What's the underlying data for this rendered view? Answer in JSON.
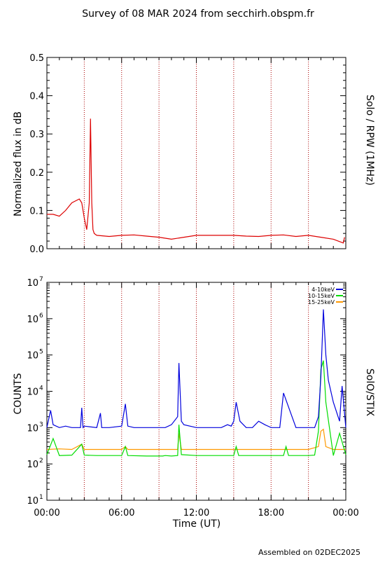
{
  "page": {
    "title": "Survey of 08 MAR 2024 from secchirh.obspm.fr",
    "footer": "Assembled on 02DEC2025"
  },
  "colors": {
    "rpw": "#dd0000",
    "stix_low": "#0000dd",
    "stix_mid": "#00dd00",
    "stix_high": "#ff9900",
    "guides": "#aa0000"
  },
  "chart_data": [
    {
      "type": "line",
      "ylabel": "Normalized flux in dB",
      "right_label": "Solo / RPW (1MHz)",
      "xlim": [
        0,
        24
      ],
      "ylim": [
        0,
        0.5
      ],
      "y_ticks": [
        "0.0",
        "0.1",
        "0.2",
        "0.3",
        "0.4",
        "0.5"
      ],
      "x_ticks": [],
      "grid": false,
      "series": [
        {
          "x": [
            0,
            0.5,
            1,
            1.5,
            2,
            2.6,
            2.8,
            3.0,
            3.2,
            3.4,
            3.5,
            3.6,
            3.7,
            3.8,
            4,
            5,
            6,
            7,
            8,
            9,
            10,
            11,
            12,
            13,
            14,
            15,
            16,
            17,
            18,
            19,
            20,
            21,
            22,
            23,
            23.8,
            23.9
          ],
          "y": [
            0.09,
            0.09,
            0.085,
            0.1,
            0.12,
            0.13,
            0.12,
            0.08,
            0.05,
            0.12,
            0.34,
            0.12,
            0.05,
            0.04,
            0.035,
            0.032,
            0.035,
            0.036,
            0.033,
            0.03,
            0.025,
            0.03,
            0.035,
            0.035,
            0.035,
            0.035,
            0.033,
            0.032,
            0.035,
            0.036,
            0.032,
            0.035,
            0.03,
            0.025,
            0.015,
            0.03
          ]
        }
      ]
    },
    {
      "type": "line",
      "ylabel": "COUNTS",
      "xlabel": "Time (UT)",
      "right_label": "SolO/STIX",
      "xlim": [
        0,
        24
      ],
      "ylim": [
        10,
        10000000
      ],
      "yscale": "log",
      "y_tick_exponents": [
        "1",
        "2",
        "3",
        "4",
        "5",
        "6",
        "7"
      ],
      "x_ticks": [
        "00:00",
        "06:00",
        "12:00",
        "18:00",
        "00:00"
      ],
      "grid": false,
      "legend_position": "top-right",
      "series": [
        {
          "name": "4-10keV",
          "x": [
            0,
            0.3,
            0.5,
            1,
            1.5,
            2,
            2.7,
            2.8,
            2.9,
            3,
            4,
            4.3,
            4.4,
            5,
            6,
            6.3,
            6.5,
            7,
            8,
            9,
            9.5,
            10,
            10.5,
            10.6,
            10.8,
            11,
            12,
            13,
            14,
            14.5,
            14.8,
            15,
            15.2,
            15.5,
            16,
            16.5,
            17,
            17.5,
            18,
            18.7,
            19,
            20,
            21,
            21.5,
            21.8,
            22,
            22.2,
            22.4,
            22.6,
            23,
            23.5,
            23.7,
            24
          ],
          "y": [
            1000,
            3000,
            1200,
            1000,
            1100,
            1000,
            1000,
            3500,
            1000,
            1100,
            1000,
            2500,
            1000,
            1000,
            1100,
            4500,
            1100,
            1000,
            1000,
            1000,
            1000,
            1200,
            2000,
            60000,
            1500,
            1200,
            1000,
            1000,
            1000,
            1200,
            1100,
            1500,
            5000,
            1500,
            1000,
            1000,
            1500,
            1200,
            1000,
            1000,
            9000,
            1000,
            1000,
            1000,
            2000,
            25000,
            1800000,
            100000,
            20000,
            5000,
            1500,
            14000,
            1000
          ]
        },
        {
          "name": "10-15keV",
          "x": [
            0,
            0.5,
            1,
            2,
            2.8,
            3,
            4,
            6,
            6.3,
            6.5,
            8,
            9.3,
            9.5,
            10,
            10.5,
            10.6,
            10.8,
            12,
            14,
            15,
            15.2,
            15.4,
            16,
            18,
            19,
            19.2,
            19.4,
            20,
            21,
            21.5,
            21.8,
            22,
            22.2,
            22.4,
            23,
            23.5,
            24
          ],
          "y": [
            180,
            500,
            170,
            175,
            350,
            175,
            170,
            170,
            300,
            170,
            165,
            165,
            170,
            165,
            170,
            1200,
            180,
            170,
            170,
            170,
            300,
            170,
            170,
            170,
            170,
            300,
            170,
            170,
            170,
            175,
            800,
            40000,
            70000,
            5000,
            170,
            700,
            180
          ]
        },
        {
          "name": "15-25keV",
          "x": [
            0,
            1,
            2,
            2.8,
            3,
            4,
            6,
            6.3,
            6.5,
            8,
            10,
            10.5,
            10.6,
            10.8,
            12,
            14,
            16,
            18,
            20,
            21,
            21.8,
            22,
            22.2,
            22.4,
            23,
            24
          ],
          "y": [
            250,
            260,
            250,
            350,
            250,
            250,
            250,
            300,
            250,
            250,
            250,
            250,
            700,
            250,
            250,
            250,
            250,
            250,
            250,
            250,
            300,
            800,
            900,
            300,
            250,
            250
          ]
        }
      ]
    }
  ]
}
